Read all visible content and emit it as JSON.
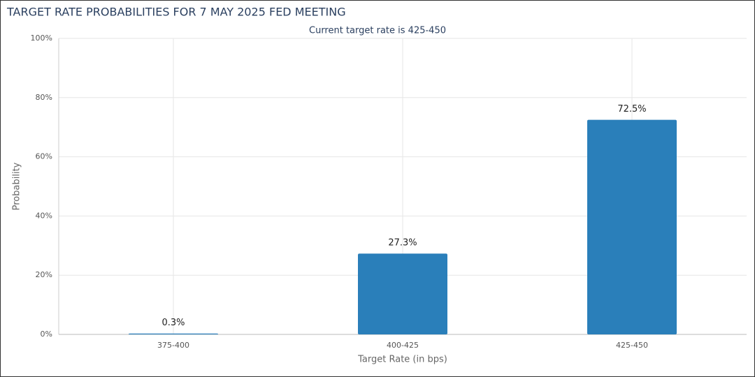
{
  "chart_data": {
    "type": "bar",
    "title": "TARGET RATE PROBABILITIES FOR 7 MAY 2025 FED MEETING",
    "subtitle": "Current target rate is 425-450",
    "x_label": "Target Rate (in bps)",
    "y_label": "Probability",
    "categories": [
      "375-400",
      "400-425",
      "425-450"
    ],
    "values": [
      0.3,
      27.3,
      72.5
    ],
    "value_labels": [
      "0.3%",
      "27.3%",
      "72.5%"
    ],
    "color": "#2a7fba",
    "ylim": [
      0,
      100
    ],
    "yticks": [
      {
        "value": 0,
        "label": "0%"
      },
      {
        "value": 20,
        "label": "20%"
      },
      {
        "value": 40,
        "label": "40%"
      },
      {
        "value": 60,
        "label": "60%"
      },
      {
        "value": 80,
        "label": "80%"
      },
      {
        "value": 100,
        "label": "100%"
      }
    ],
    "grid": true
  }
}
